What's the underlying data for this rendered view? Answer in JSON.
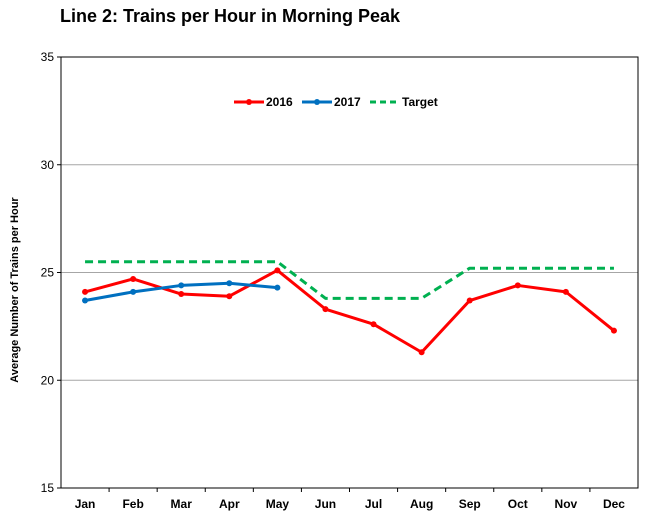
{
  "chart_data": {
    "type": "line",
    "title": "Line 2: Trains per Hour in Morning Peak",
    "xlabel": "",
    "ylabel": "Average Number of Trains per Hour",
    "categories": [
      "Jan",
      "Feb",
      "Mar",
      "Apr",
      "May",
      "Jun",
      "Jul",
      "Aug",
      "Sep",
      "Oct",
      "Nov",
      "Dec"
    ],
    "ylim": [
      15,
      35
    ],
    "yticks": [
      15,
      20,
      25,
      30,
      35
    ],
    "grid": true,
    "legend_position": "top-center",
    "series": [
      {
        "name": "2016",
        "color": "#ff0000",
        "style": "solid",
        "markers": true,
        "values": [
          24.1,
          24.7,
          24.0,
          23.9,
          25.1,
          23.3,
          22.6,
          21.3,
          23.7,
          24.4,
          24.1,
          22.3
        ]
      },
      {
        "name": "2017",
        "color": "#0070c0",
        "style": "solid",
        "markers": true,
        "values": [
          23.7,
          24.1,
          24.4,
          24.5,
          24.3,
          null,
          null,
          null,
          null,
          null,
          null,
          null
        ]
      },
      {
        "name": "Target",
        "color": "#00b050",
        "style": "dashed",
        "markers": false,
        "values": [
          25.5,
          25.5,
          25.5,
          25.5,
          25.5,
          23.8,
          23.8,
          23.8,
          25.2,
          25.2,
          25.2,
          25.2
        ]
      }
    ]
  }
}
